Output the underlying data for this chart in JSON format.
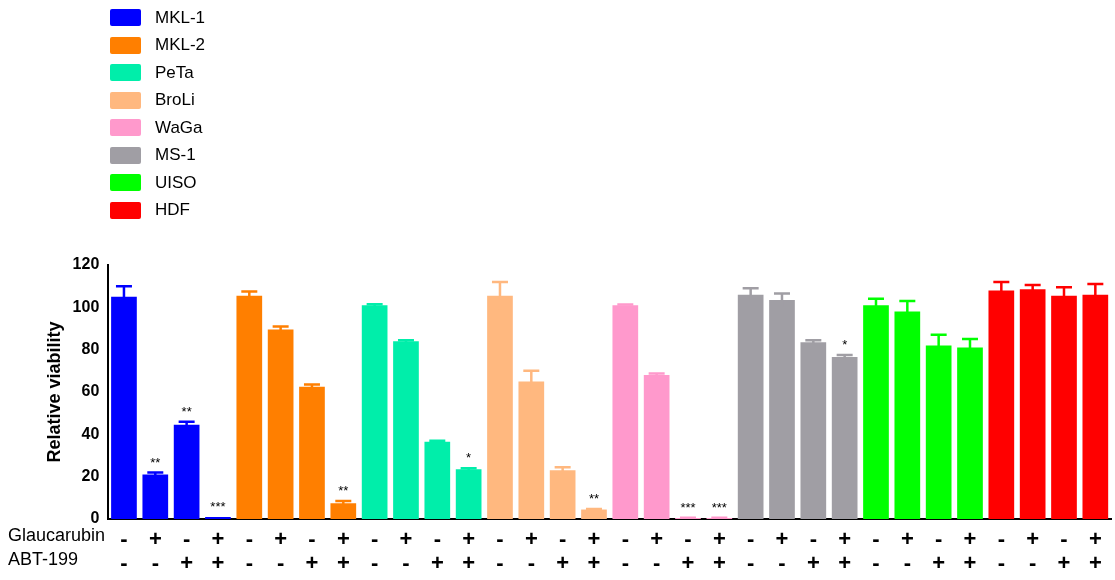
{
  "chart_data": {
    "type": "bar",
    "ylabel": "Relative viability",
    "categories": [
      "-\n-",
      "+\n-",
      "-\n+",
      "+\n+",
      "-\n-",
      "+\n-",
      "-\n+",
      "+\n+",
      "-\n-",
      "+\n-",
      "-\n+",
      "+\n+",
      "-\n-",
      "+\n-",
      "-\n+",
      "+\n+",
      "-\n-",
      "+\n-",
      "-\n+",
      "+\n+",
      "-\n-",
      "+\n-",
      "-\n+",
      "+\n+",
      "-\n-",
      "+\n-",
      "-\n+",
      "+\n+",
      "-\n-",
      "+\n-",
      "-\n+",
      "+\n+"
    ],
    "annotations": [
      "Glaucarubin",
      "ABT-199"
    ],
    "series": [
      {
        "name": "MKL-1",
        "color": "#0000ff",
        "values": [
          105,
          21,
          44.5,
          1,
          null,
          null,
          null,
          null,
          null,
          null,
          null,
          null,
          null,
          null,
          null,
          null,
          null,
          null,
          null,
          null,
          null,
          null,
          null,
          null,
          null,
          null,
          null,
          null,
          null,
          null,
          null,
          null
        ],
        "errors": [
          5,
          1,
          1.5,
          null,
          null,
          null,
          null,
          null,
          null,
          null,
          null,
          null,
          null,
          null,
          null,
          null,
          null,
          null,
          null,
          null,
          null,
          null,
          null,
          null,
          null,
          null,
          null,
          null,
          null,
          null,
          null,
          null
        ],
        "value_labels": [
          null,
          "**",
          "**",
          "***",
          null,
          null,
          null,
          null,
          null,
          null,
          null,
          null,
          null,
          null,
          null,
          null,
          null,
          null,
          null,
          null,
          null,
          null,
          null,
          null,
          null,
          null,
          null,
          null,
          null,
          null,
          null,
          null
        ]
      },
      {
        "name": "MKL-2",
        "color": "#ff7f00",
        "values": [
          null,
          null,
          null,
          null,
          105.5,
          89.5,
          62.5,
          7.5,
          null,
          null,
          null,
          null,
          null,
          null,
          null,
          null,
          null,
          null,
          null,
          null,
          null,
          null,
          null,
          null,
          null,
          null,
          null,
          null,
          null,
          null,
          null,
          null
        ],
        "errors": [
          null,
          null,
          null,
          null,
          2,
          1.5,
          1,
          1,
          null,
          null,
          null,
          null,
          null,
          null,
          null,
          null,
          null,
          null,
          null,
          null,
          null,
          null,
          null,
          null,
          null,
          null,
          null,
          null,
          null,
          null,
          null,
          null
        ],
        "value_labels": [
          null,
          null,
          null,
          null,
          null,
          null,
          null,
          "**",
          null,
          null,
          null,
          null,
          null,
          null,
          null,
          null,
          null,
          null,
          null,
          null,
          null,
          null,
          null,
          null,
          null,
          null,
          null,
          null,
          null,
          null,
          null,
          null
        ]
      },
      {
        "name": "PeTa",
        "color": "#00eeaa",
        "values": [
          null,
          null,
          null,
          null,
          null,
          null,
          null,
          null,
          101,
          84,
          36.5,
          23.5,
          null,
          null,
          null,
          null,
          null,
          null,
          null,
          null,
          null,
          null,
          null,
          null,
          null,
          null,
          null,
          null,
          null,
          null,
          null,
          null
        ],
        "errors": [
          null,
          null,
          null,
          null,
          null,
          null,
          null,
          null,
          0.5,
          0.5,
          0.5,
          0.5,
          null,
          null,
          null,
          null,
          null,
          null,
          null,
          null,
          null,
          null,
          null,
          null,
          null,
          null,
          null,
          null,
          null,
          null,
          null,
          null
        ],
        "value_labels": [
          null,
          null,
          null,
          null,
          null,
          null,
          null,
          null,
          null,
          null,
          null,
          "*",
          null,
          null,
          null,
          null,
          null,
          null,
          null,
          null,
          null,
          null,
          null,
          null,
          null,
          null,
          null,
          null,
          null,
          null,
          null,
          null
        ]
      },
      {
        "name": "BroLi",
        "color": "#ffb87f",
        "values": [
          null,
          null,
          null,
          null,
          null,
          null,
          null,
          null,
          null,
          null,
          null,
          null,
          105.5,
          65,
          23,
          4.5,
          null,
          null,
          null,
          null,
          null,
          null,
          null,
          null,
          null,
          null,
          null,
          null,
          null,
          null,
          null,
          null
        ],
        "errors": [
          null,
          null,
          null,
          null,
          null,
          null,
          null,
          null,
          null,
          null,
          null,
          null,
          6.5,
          5,
          1.5,
          0.3,
          null,
          null,
          null,
          null,
          null,
          null,
          null,
          null,
          null,
          null,
          null,
          null,
          null,
          null,
          null,
          null
        ],
        "value_labels": [
          null,
          null,
          null,
          null,
          null,
          null,
          null,
          null,
          null,
          null,
          null,
          null,
          null,
          null,
          null,
          "**",
          null,
          null,
          null,
          null,
          null,
          null,
          null,
          null,
          null,
          null,
          null,
          null,
          null,
          null,
          null,
          null
        ]
      },
      {
        "name": "WaGa",
        "color": "#ff99cc",
        "values": [
          null,
          null,
          null,
          null,
          null,
          null,
          null,
          null,
          null,
          null,
          null,
          null,
          null,
          null,
          null,
          null,
          101,
          68,
          0.5,
          0.5,
          null,
          null,
          null,
          null,
          null,
          null,
          null,
          null,
          null,
          null,
          null,
          null
        ],
        "errors": [
          null,
          null,
          null,
          null,
          null,
          null,
          null,
          null,
          null,
          null,
          null,
          null,
          null,
          null,
          null,
          null,
          0.3,
          0.8,
          0.1,
          0.1,
          null,
          null,
          null,
          null,
          null,
          null,
          null,
          null,
          null,
          null,
          null,
          null
        ],
        "value_labels": [
          null,
          null,
          null,
          null,
          null,
          null,
          null,
          null,
          null,
          null,
          null,
          null,
          null,
          null,
          null,
          null,
          null,
          null,
          "***",
          "***",
          null,
          null,
          null,
          null,
          null,
          null,
          null,
          null,
          null,
          null,
          null,
          null
        ]
      },
      {
        "name": "MS-1",
        "color": "#a09ea4",
        "values": [
          null,
          null,
          null,
          null,
          null,
          null,
          null,
          null,
          null,
          null,
          null,
          null,
          null,
          null,
          null,
          null,
          null,
          null,
          null,
          null,
          106,
          103.5,
          83.5,
          76.5,
          null,
          null,
          null,
          null,
          null,
          null,
          null,
          null
        ],
        "errors": [
          null,
          null,
          null,
          null,
          null,
          null,
          null,
          null,
          null,
          null,
          null,
          null,
          null,
          null,
          null,
          null,
          null,
          null,
          null,
          null,
          3,
          3,
          1,
          1,
          null,
          null,
          null,
          null,
          null,
          null,
          null,
          null
        ],
        "value_labels": [
          null,
          null,
          null,
          null,
          null,
          null,
          null,
          null,
          null,
          null,
          null,
          null,
          null,
          null,
          null,
          null,
          null,
          null,
          null,
          null,
          null,
          null,
          null,
          "*",
          null,
          null,
          null,
          null,
          null,
          null,
          null,
          null
        ]
      },
      {
        "name": "UISO",
        "color": "#00ff00",
        "values": [
          null,
          null,
          null,
          null,
          null,
          null,
          null,
          null,
          null,
          null,
          null,
          null,
          null,
          null,
          null,
          null,
          null,
          null,
          null,
          null,
          null,
          null,
          null,
          null,
          101,
          98,
          82,
          81,
          null,
          null,
          null,
          null
        ],
        "errors": [
          null,
          null,
          null,
          null,
          null,
          null,
          null,
          null,
          null,
          null,
          null,
          null,
          null,
          null,
          null,
          null,
          null,
          null,
          null,
          null,
          null,
          null,
          null,
          null,
          3,
          5,
          5,
          4,
          null,
          null,
          null,
          null
        ]
      },
      {
        "name": "HDF",
        "color": "#ff0000",
        "values": [
          null,
          null,
          null,
          null,
          null,
          null,
          null,
          null,
          null,
          null,
          null,
          null,
          null,
          null,
          null,
          null,
          null,
          null,
          null,
          null,
          null,
          null,
          null,
          null,
          null,
          null,
          null,
          null,
          108,
          108.5,
          105.5,
          106
        ],
        "errors": [
          null,
          null,
          null,
          null,
          null,
          null,
          null,
          null,
          null,
          null,
          null,
          null,
          null,
          null,
          null,
          null,
          null,
          null,
          null,
          null,
          null,
          null,
          null,
          null,
          null,
          null,
          null,
          null,
          4,
          2,
          4,
          5
        ]
      }
    ],
    "ylim": [
      0,
      120
    ],
    "yticks": [
      0,
      20,
      40,
      60,
      80,
      100,
      120
    ],
    "grid": false,
    "legend": "top left"
  }
}
